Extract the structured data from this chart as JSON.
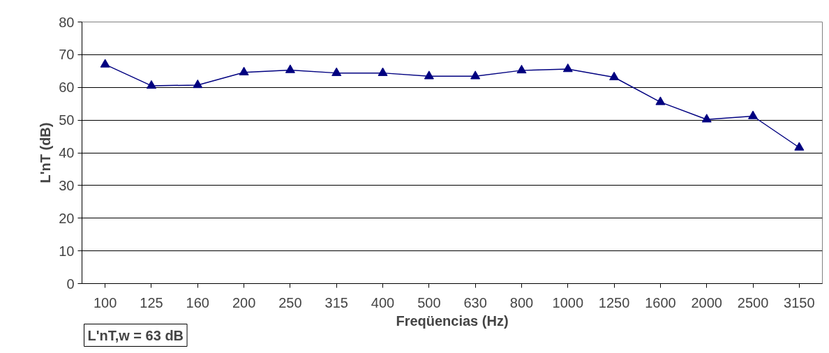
{
  "chart_data": {
    "type": "line",
    "xlabel": "Freqüencias (Hz)",
    "ylabel": "L'nT (dB)",
    "categories": [
      "100",
      "125",
      "160",
      "200",
      "250",
      "315",
      "400",
      "500",
      "630",
      "800",
      "1000",
      "1250",
      "1600",
      "2000",
      "2500",
      "3150"
    ],
    "series": [
      {
        "color": "#000080",
        "values": [
          67.0,
          60.5,
          60.7,
          64.6,
          65.3,
          64.4,
          64.4,
          63.4,
          63.4,
          65.2,
          65.6,
          63.1,
          55.5,
          50.2,
          51.2,
          41.6
        ]
      }
    ],
    "ylim": [
      0,
      80
    ],
    "yticks": [
      0,
      10,
      20,
      30,
      40,
      50,
      60,
      70,
      80
    ],
    "grid": "y",
    "marker": "triangle",
    "line_style": "solid",
    "annotations": [
      "L'nT,w = 63 dB"
    ]
  }
}
